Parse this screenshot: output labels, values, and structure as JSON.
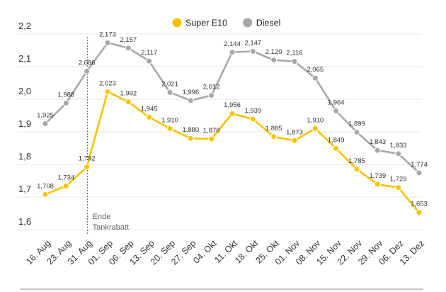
{
  "chart_data": {
    "type": "line",
    "categories": [
      "16. Aug",
      "23. Aug",
      "31. Aug",
      "01. Sep",
      "06. Sep",
      "13. Sep",
      "20. Sep",
      "27. Sep",
      "04. Okt",
      "11. Okt",
      "18. Okt",
      "25. Okt",
      "01. Nov",
      "08. Nov",
      "15. Nov",
      "22. Nov",
      "29. Nov",
      "06. Dez",
      "13. Dez"
    ],
    "series": [
      {
        "name": "Super E10",
        "color": "#f5c400",
        "values": [
          1.708,
          1.734,
          1.792,
          2.023,
          1.992,
          1.945,
          1.91,
          1.88,
          1.878,
          1.956,
          1.939,
          1.885,
          1.873,
          1.91,
          1.849,
          1.785,
          1.739,
          1.729,
          1.653
        ],
        "labels": [
          "1,708",
          "1,734",
          "1,792",
          "2,023",
          "1,992",
          "1,945",
          "1,910",
          "1,880",
          "1,878",
          "1,956",
          "1,939",
          "1,885",
          "1,873",
          "1,910",
          "1,849",
          "1,785",
          "1,739",
          "1,729",
          "1,653"
        ]
      },
      {
        "name": "Diesel",
        "color": "#a8a8a8",
        "values": [
          1.925,
          1.988,
          2.086,
          2.173,
          2.157,
          2.117,
          2.021,
          1.996,
          2.012,
          2.144,
          2.147,
          2.12,
          2.116,
          2.065,
          1.964,
          1.899,
          1.843,
          1.833,
          1.774
        ],
        "labels": [
          "1,925",
          "1,988",
          "2,086",
          "2,173",
          "2,157",
          "2,117",
          "2,021",
          "1,996",
          "2,012",
          "2,144",
          "2,147",
          "2,120",
          "2,116",
          "2,065",
          "1,964",
          "1,899",
          "1,843",
          "1,833",
          "1,774"
        ]
      }
    ],
    "yticks": [
      1.6,
      1.7,
      1.8,
      1.9,
      2.0,
      2.1,
      2.2
    ],
    "ytick_labels": [
      "1,6",
      "1,7",
      "1,8",
      "1,9",
      "2,0",
      "2,1",
      "2,2"
    ],
    "ylim": [
      1.6,
      2.2
    ],
    "grid": "horizontal",
    "legend_position": "top-center",
    "annotation": {
      "after_category": "31. Aug",
      "lines": [
        "Ende",
        "Tankrabatt"
      ]
    },
    "title": "",
    "xlabel": "",
    "ylabel": ""
  }
}
